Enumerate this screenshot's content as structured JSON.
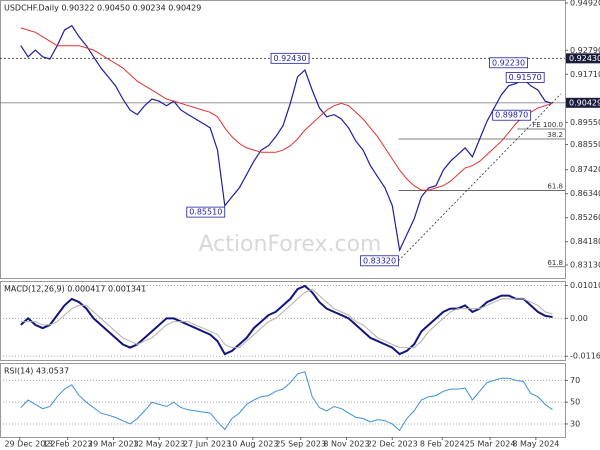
{
  "chart_data": [
    {
      "type": "line",
      "title": "USDCHF.Daily 0.90322 0.90450 0.90234 0.90429",
      "watermark": "ActionForex.com",
      "x": [
        "2022-12-30",
        "2023-01-06",
        "2023-01-13",
        "2023-01-20",
        "2023-01-27",
        "2023-02-03",
        "2023-02-10",
        "2023-02-17",
        "2023-02-24",
        "2023-03-03",
        "2023-03-10",
        "2023-03-17",
        "2023-03-24",
        "2023-03-31",
        "2023-04-07",
        "2023-04-14",
        "2023-04-21",
        "2023-04-28",
        "2023-05-05",
        "2023-05-12",
        "2023-05-19",
        "2023-05-26",
        "2023-06-02",
        "2023-06-09",
        "2023-06-16",
        "2023-06-23",
        "2023-06-30",
        "2023-07-07",
        "2023-07-14",
        "2023-07-21",
        "2023-07-28",
        "2023-08-04",
        "2023-08-11",
        "2023-08-18",
        "2023-08-25",
        "2023-09-01",
        "2023-09-08",
        "2023-09-15",
        "2023-09-22",
        "2023-09-29",
        "2023-10-06",
        "2023-10-13",
        "2023-10-20",
        "2023-10-27",
        "2023-11-03",
        "2023-11-10",
        "2023-11-17",
        "2023-11-24",
        "2023-12-01",
        "2023-12-08",
        "2023-12-15",
        "2023-12-22",
        "2023-12-29",
        "2024-01-05",
        "2024-01-12",
        "2024-01-19",
        "2024-01-26",
        "2024-02-02",
        "2024-02-09",
        "2024-02-16",
        "2024-02-23",
        "2024-03-01",
        "2024-03-08",
        "2024-03-15",
        "2024-03-22",
        "2024-03-29",
        "2024-04-05",
        "2024-04-12",
        "2024-04-19",
        "2024-04-26",
        "2024-05-03",
        "2024-05-10",
        "2024-05-17",
        "2024-05-24"
      ],
      "xlim": [
        "2022-12-10",
        "2024-06-05"
      ],
      "series": [
        {
          "color": "#1f1f9e",
          "values": [
            0.93,
            0.925,
            0.928,
            0.925,
            0.924,
            0.93,
            0.937,
            0.939,
            0.934,
            0.93,
            0.925,
            0.92,
            0.916,
            0.912,
            0.906,
            0.901,
            0.899,
            0.903,
            0.906,
            0.905,
            0.903,
            0.905,
            0.901,
            0.899,
            0.897,
            0.895,
            0.893,
            0.883,
            0.858,
            0.862,
            0.866,
            0.872,
            0.878,
            0.883,
            0.885,
            0.889,
            0.894,
            0.904,
            0.916,
            0.919,
            0.91,
            0.902,
            0.898,
            0.899,
            0.897,
            0.893,
            0.887,
            0.883,
            0.876,
            0.871,
            0.866,
            0.858,
            0.838,
            0.845,
            0.852,
            0.862,
            0.866,
            0.867,
            0.874,
            0.878,
            0.881,
            0.884,
            0.88,
            0.888,
            0.896,
            0.902,
            0.908,
            0.912,
            0.913,
            0.915,
            0.912,
            0.91,
            0.905,
            0.904
          ]
        },
        {
          "color": "#e03232",
          "values": [
            0.938,
            0.937,
            0.936,
            0.934,
            0.932,
            0.93,
            0.93,
            0.93,
            0.93,
            0.929,
            0.928,
            0.926,
            0.924,
            0.922,
            0.92,
            0.917,
            0.914,
            0.912,
            0.91,
            0.908,
            0.906,
            0.905,
            0.904,
            0.903,
            0.902,
            0.901,
            0.9,
            0.898,
            0.893,
            0.889,
            0.886,
            0.884,
            0.883,
            0.882,
            0.882,
            0.882,
            0.883,
            0.885,
            0.888,
            0.892,
            0.895,
            0.898,
            0.901,
            0.903,
            0.904,
            0.903,
            0.9,
            0.897,
            0.893,
            0.889,
            0.884,
            0.879,
            0.874,
            0.87,
            0.867,
            0.865,
            0.865,
            0.866,
            0.867,
            0.869,
            0.872,
            0.875,
            0.876,
            0.878,
            0.881,
            0.884,
            0.887,
            0.891,
            0.895,
            0.898,
            0.9,
            0.902,
            0.903,
            0.904
          ]
        }
      ],
      "ylim": [
        0.82545,
        0.95055
      ],
      "yticks": [
        {
          "value": 0.9492,
          "label": "0.94920"
        },
        {
          "value": 0.9279,
          "label": "0.92790"
        },
        {
          "value": 0.9171,
          "label": "0.91710"
        },
        {
          "value": 0.8955,
          "label": "0.89550"
        },
        {
          "value": 0.8855,
          "label": "0.88550"
        },
        {
          "value": 0.8742,
          "label": "0.87420"
        },
        {
          "value": 0.8634,
          "label": "0.86340"
        },
        {
          "value": 0.8526,
          "label": "0.85260"
        },
        {
          "value": 0.8418,
          "label": "0.84180"
        },
        {
          "value": 0.8313,
          "label": "0.83130"
        }
      ],
      "grid": false,
      "value_markers": [
        {
          "value": 0.9243,
          "label": "0.92430"
        },
        {
          "value": 0.90429,
          "label": "0.90429"
        }
      ],
      "annotations": [
        {
          "x": "2023-10-03",
          "y": 0.9243,
          "label": "0.92430"
        },
        {
          "x": "2023-07-14",
          "y": 0.8551,
          "label": "0.85510"
        },
        {
          "x": "2023-12-28",
          "y": 0.8332,
          "label": "0.83320"
        },
        {
          "x": "2024-04-30",
          "y": 0.9223,
          "label": "0.92230"
        },
        {
          "x": "2024-05-16",
          "y": 0.9157,
          "label": "0.91570"
        },
        {
          "x": "2024-05-03",
          "y": 0.8987,
          "label": "0.89870"
        }
      ],
      "levels": [
        {
          "from": "2024-04-20",
          "value": 0.8925,
          "label": "FE 100.0"
        },
        {
          "from": "2023-12-28",
          "value": 0.888,
          "label": "38.2"
        },
        {
          "from": "2023-12-28",
          "value": 0.8648,
          "label": "61.8"
        },
        {
          "from": "2024-05-20",
          "value": 0.8305,
          "label": "61.8"
        }
      ],
      "trendline": {
        "x": [
          "2023-12-28",
          "2024-06-01"
        ],
        "y": [
          0.8332,
          0.9083
        ]
      }
    },
    {
      "type": "line",
      "title": "MACD(12,26,9) 0.000417 0.001341",
      "x": [
        "2022-12-30",
        "2023-01-06",
        "2023-01-13",
        "2023-01-20",
        "2023-01-27",
        "2023-02-03",
        "2023-02-10",
        "2023-02-17",
        "2023-02-24",
        "2023-03-03",
        "2023-03-10",
        "2023-03-17",
        "2023-03-24",
        "2023-03-31",
        "2023-04-07",
        "2023-04-14",
        "2023-04-21",
        "2023-04-28",
        "2023-05-05",
        "2023-05-12",
        "2023-05-19",
        "2023-05-26",
        "2023-06-02",
        "2023-06-09",
        "2023-06-16",
        "2023-06-23",
        "2023-06-30",
        "2023-07-07",
        "2023-07-14",
        "2023-07-21",
        "2023-07-28",
        "2023-08-04",
        "2023-08-11",
        "2023-08-18",
        "2023-08-25",
        "2023-09-01",
        "2023-09-08",
        "2023-09-15",
        "2023-09-22",
        "2023-09-29",
        "2023-10-06",
        "2023-10-13",
        "2023-10-20",
        "2023-10-27",
        "2023-11-03",
        "2023-11-10",
        "2023-11-17",
        "2023-11-24",
        "2023-12-01",
        "2023-12-08",
        "2023-12-15",
        "2023-12-22",
        "2023-12-29",
        "2024-01-05",
        "2024-01-12",
        "2024-01-19",
        "2024-01-26",
        "2024-02-02",
        "2024-02-09",
        "2024-02-16",
        "2024-02-23",
        "2024-03-01",
        "2024-03-08",
        "2024-03-15",
        "2024-03-22",
        "2024-03-29",
        "2024-04-05",
        "2024-04-12",
        "2024-04-19",
        "2024-04-26",
        "2024-05-03",
        "2024-05-10",
        "2024-05-17",
        "2024-05-24"
      ],
      "xlim": [
        "2022-12-10",
        "2024-06-05"
      ],
      "series": [
        {
          "color": "#14147a",
          "values": [
            -0.002,
            0,
            -0.002,
            -0.003,
            -0.002,
            0.001,
            0.004,
            0.006,
            0.005,
            0.003,
            0,
            -0.002,
            -0.004,
            -0.006,
            -0.008,
            -0.009,
            -0.008,
            -0.006,
            -0.004,
            -0.002,
            0,
            0,
            -0.001,
            -0.002,
            -0.003,
            -0.004,
            -0.005,
            -0.007,
            -0.011,
            -0.01,
            -0.008,
            -0.006,
            -0.003,
            -0.001,
            0.001,
            0.002,
            0.004,
            0.006,
            0.009,
            0.01,
            0.008,
            0.005,
            0.003,
            0.002,
            0.001,
            0,
            -0.002,
            -0.004,
            -0.006,
            -0.007,
            -0.008,
            -0.009,
            -0.011,
            -0.01,
            -0.008,
            -0.004,
            -0.002,
            0,
            0.002,
            0.003,
            0.003,
            0.004,
            0.002,
            0.003,
            0.005,
            0.006,
            0.007,
            0.007,
            0.006,
            0.006,
            0.004,
            0.002,
            0.0008,
            0.000417
          ]
        },
        {
          "color": "#b0b0b0",
          "values": [
            -0.001,
            -0.001,
            -0.001,
            -0.002,
            -0.002,
            -0.001,
            0.001,
            0.003,
            0.004,
            0.004,
            0.002,
            0,
            -0.002,
            -0.004,
            -0.006,
            -0.007,
            -0.008,
            -0.007,
            -0.006,
            -0.004,
            -0.002,
            -0.001,
            -0.001,
            -0.001,
            -0.002,
            -0.003,
            -0.004,
            -0.005,
            -0.008,
            -0.009,
            -0.009,
            -0.007,
            -0.005,
            -0.003,
            -0.001,
            0,
            0.002,
            0.004,
            0.006,
            0.008,
            0.009,
            0.007,
            0.005,
            0.003,
            0.002,
            0.001,
            -0.001,
            -0.002,
            -0.004,
            -0.006,
            -0.007,
            -0.008,
            -0.009,
            -0.009,
            -0.009,
            -0.007,
            -0.004,
            -0.002,
            0,
            0.002,
            0.003,
            0.003,
            0.003,
            0.003,
            0.004,
            0.005,
            0.006,
            0.006,
            0.006,
            0.006,
            0.005,
            0.004,
            0.002,
            0.001341
          ]
        }
      ],
      "ylim": [
        -0.0128,
        0.0115
      ],
      "yticks": [
        0.010101,
        {
          "value": 0,
          "label": "0.00"
        },
        -0.011645
      ],
      "grid": true
    },
    {
      "type": "line",
      "title": "RSI(14) 43.0537",
      "x": [
        "2022-12-30",
        "2023-01-06",
        "2023-01-13",
        "2023-01-20",
        "2023-01-27",
        "2023-02-03",
        "2023-02-10",
        "2023-02-17",
        "2023-02-24",
        "2023-03-03",
        "2023-03-10",
        "2023-03-17",
        "2023-03-24",
        "2023-03-31",
        "2023-04-07",
        "2023-04-14",
        "2023-04-21",
        "2023-04-28",
        "2023-05-05",
        "2023-05-12",
        "2023-05-19",
        "2023-05-26",
        "2023-06-02",
        "2023-06-09",
        "2023-06-16",
        "2023-06-23",
        "2023-06-30",
        "2023-07-07",
        "2023-07-14",
        "2023-07-21",
        "2023-07-28",
        "2023-08-04",
        "2023-08-11",
        "2023-08-18",
        "2023-08-25",
        "2023-09-01",
        "2023-09-08",
        "2023-09-15",
        "2023-09-22",
        "2023-09-29",
        "2023-10-06",
        "2023-10-13",
        "2023-10-20",
        "2023-10-27",
        "2023-11-03",
        "2023-11-10",
        "2023-11-17",
        "2023-11-24",
        "2023-12-01",
        "2023-12-08",
        "2023-12-15",
        "2023-12-22",
        "2023-12-29",
        "2024-01-05",
        "2024-01-12",
        "2024-01-19",
        "2024-01-26",
        "2024-02-02",
        "2024-02-09",
        "2024-02-16",
        "2024-02-23",
        "2024-03-01",
        "2024-03-08",
        "2024-03-15",
        "2024-03-22",
        "2024-03-29",
        "2024-04-05",
        "2024-04-12",
        "2024-04-19",
        "2024-04-26",
        "2024-05-03",
        "2024-05-10",
        "2024-05-17",
        "2024-05-24"
      ],
      "xlim": [
        "2022-12-10",
        "2024-06-05"
      ],
      "series": [
        {
          "color": "#3d8fe0",
          "values": [
            45,
            52,
            48,
            44,
            46,
            55,
            62,
            66,
            56,
            50,
            45,
            40,
            38,
            36,
            33,
            30,
            35,
            42,
            50,
            48,
            46,
            50,
            45,
            43,
            42,
            41,
            40,
            32,
            25,
            35,
            40,
            48,
            52,
            55,
            56,
            60,
            62,
            68,
            76,
            78,
            55,
            45,
            42,
            46,
            44,
            40,
            36,
            35,
            32,
            34,
            33,
            30,
            24,
            35,
            42,
            52,
            55,
            56,
            60,
            62,
            62,
            63,
            52,
            60,
            68,
            70,
            72,
            72,
            70,
            69,
            58,
            55,
            48,
            43.0537
          ]
        }
      ],
      "ylim": [
        18,
        86
      ],
      "yticks": [
        70,
        50,
        30
      ],
      "grid": true,
      "xticks": [
        {
          "value": "2022-12-29",
          "label": "29 Dec 2022"
        },
        {
          "value": "2023-02-13",
          "label": "13 Feb 2023"
        },
        {
          "value": "2023-03-29",
          "label": "29 Mar 2023"
        },
        {
          "value": "2023-05-12",
          "label": "12 May 2023"
        },
        {
          "value": "2023-06-27",
          "label": "27 Jun 2023"
        },
        {
          "value": "2023-08-10",
          "label": "10 Aug 2023"
        },
        {
          "value": "2023-09-25",
          "label": "25 Sep 2023"
        },
        {
          "value": "2023-11-08",
          "label": "8 Nov 2023"
        },
        {
          "value": "2023-12-22",
          "label": "22 Dec 2023"
        },
        {
          "value": "2024-02-08",
          "label": "8 Feb 2024"
        },
        {
          "value": "2024-03-25",
          "label": "25 Mar 2024"
        },
        {
          "value": "2024-05-08",
          "label": "8 May 2024"
        }
      ]
    }
  ]
}
